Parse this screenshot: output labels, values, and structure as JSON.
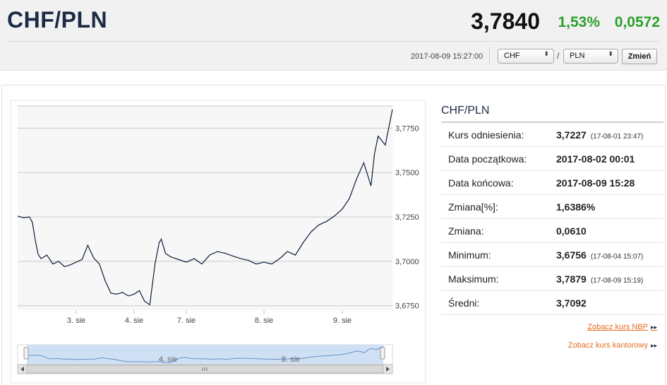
{
  "header": {
    "pair": "CHF/PLN",
    "rate": "3,7840",
    "change_pct": "1,53%",
    "change_abs": "0,0572",
    "timestamp": "2017-08-09 15:27:00",
    "from_currency": "CHF",
    "to_currency": "PLN",
    "separator": "/",
    "button_label": "Zmień",
    "select_arrows": "⬍"
  },
  "stats": {
    "title": "CHF/PLN",
    "rows": [
      {
        "label": "Kurs odniesienia:",
        "value": "3,7227",
        "time": "(17-08-01 23:47)"
      },
      {
        "label": "Data początkowa:",
        "value": "2017-08-02 00:01",
        "time": ""
      },
      {
        "label": "Data końcowa:",
        "value": "2017-08-09 15:28",
        "time": ""
      },
      {
        "label": "Zmiana[%]:",
        "value": "1,6386%",
        "time": ""
      },
      {
        "label": "Zmiana:",
        "value": "0,0610",
        "time": ""
      },
      {
        "label": "Minimum:",
        "value": "3,6756",
        "time": "(17-08-04 15:07)"
      },
      {
        "label": "Maksimum:",
        "value": "3,7879",
        "time": "(17-08-09 15:19)"
      },
      {
        "label": "Średni:",
        "value": "3,7092",
        "time": ""
      }
    ],
    "link_nbp": "Zobacz kurs NBP",
    "link_kantor": "Zobacz kurs kantorowy",
    "link_arrow": "▸▸"
  },
  "chart_data": {
    "type": "line",
    "title": "",
    "xlabel": "",
    "ylabel": "",
    "ylim": [
      3.6725,
      3.7875
    ],
    "yticks": [
      3.675,
      3.7,
      3.725,
      3.75,
      3.775
    ],
    "ytick_labels": [
      "3,6750",
      "3,7000",
      "3,7250",
      "3,7500",
      "3,7750"
    ],
    "xticks": [
      {
        "label": "3. sie",
        "x": 1.0
      },
      {
        "label": "4. sie",
        "x": 2.0
      },
      {
        "label": "7. sie",
        "x": 3.0
      },
      {
        "label": "8. sie",
        "x": 4.0
      },
      {
        "label": "9. sie",
        "x": 5.0
      }
    ],
    "grid": true,
    "series": [
      {
        "x": [
          0.0,
          0.05,
          0.1,
          0.2,
          0.25,
          0.3,
          0.35,
          0.4,
          0.5,
          0.6,
          0.7,
          0.8,
          0.9,
          1.0,
          1.1,
          1.2,
          1.3,
          1.4,
          1.5,
          1.6,
          1.7,
          1.8,
          1.9,
          2.0,
          2.1,
          2.2,
          2.3,
          2.4,
          2.48,
          2.52,
          2.6,
          2.7,
          2.8,
          2.9,
          3.0,
          3.1,
          3.2,
          3.3,
          3.4,
          3.5,
          3.6,
          3.7,
          3.8,
          3.9,
          4.0,
          4.1,
          4.2,
          4.3,
          4.4,
          4.5,
          4.6,
          4.7,
          4.8,
          4.9,
          5.0,
          5.1,
          5.2,
          5.3,
          5.4,
          5.45,
          5.5,
          5.6,
          5.65,
          5.7
        ],
        "values": [
          3.7255,
          3.725,
          3.7245,
          3.725,
          3.722,
          3.712,
          3.704,
          3.7015,
          3.7035,
          3.6985,
          3.7,
          3.697,
          3.698,
          3.6995,
          3.701,
          3.709,
          3.702,
          3.6985,
          3.689,
          3.682,
          3.6815,
          3.6825,
          3.6805,
          3.6815,
          3.6835,
          3.6775,
          3.6755,
          3.6985,
          3.7105,
          3.7125,
          3.7045,
          3.7025,
          3.7015,
          3.7005,
          3.6995,
          3.7015,
          3.6985,
          3.7035,
          3.7055,
          3.7045,
          3.703,
          3.7015,
          3.7005,
          3.6985,
          3.6995,
          3.6985,
          3.7015,
          3.7055,
          3.7035,
          3.7105,
          3.7165,
          3.7205,
          3.7225,
          3.7255,
          3.7295,
          3.7355,
          3.7465,
          3.7555,
          3.7425,
          3.7605,
          3.7705,
          3.7655,
          3.7755,
          3.7855
        ]
      }
    ]
  }
}
